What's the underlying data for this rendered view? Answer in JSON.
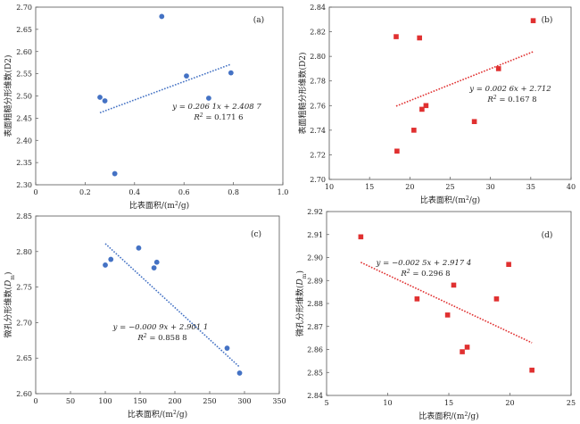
{
  "chart_data": [
    {
      "type": "scatter",
      "panel_label": "(a)",
      "xlabel": "比表面积/(m²/g)",
      "ylabel": "表面粗糙分形维数(D2)",
      "xlim": [
        0,
        1.0
      ],
      "ylim": [
        2.3,
        2.7
      ],
      "xticks": [
        "0",
        "0.2",
        "0.4",
        "0.6",
        "0.8",
        "1.0"
      ],
      "yticks": [
        "2.30",
        "2.35",
        "2.40",
        "2.45",
        "2.50",
        "2.55",
        "2.60",
        "2.65",
        "2.70"
      ],
      "marker": "circle",
      "color": "#4472c4",
      "points": [
        {
          "x": 0.26,
          "y": 2.497
        },
        {
          "x": 0.28,
          "y": 2.489
        },
        {
          "x": 0.32,
          "y": 2.325
        },
        {
          "x": 0.51,
          "y": 2.679
        },
        {
          "x": 0.61,
          "y": 2.545
        },
        {
          "x": 0.7,
          "y": 2.495
        },
        {
          "x": 0.79,
          "y": 2.552
        }
      ],
      "trendline": {
        "slope": 0.2061,
        "intercept": 2.4087,
        "x_start": 0.26,
        "x_end": 0.79
      },
      "equation": "y = 0.206 1x + 2.408 7",
      "r2": "R² = 0.171 6"
    },
    {
      "type": "scatter",
      "panel_label": "(b)",
      "xlabel": "比表面积/(m²/g)",
      "ylabel": "表面粗糙分形维数(D2)",
      "xlim": [
        10,
        40
      ],
      "ylim": [
        2.7,
        2.84
      ],
      "xticks": [
        "10",
        "15",
        "20",
        "25",
        "30",
        "35",
        "40"
      ],
      "yticks": [
        "2.70",
        "2.72",
        "2.74",
        "2.76",
        "2.78",
        "2.80",
        "2.82",
        "2.84"
      ],
      "marker": "square",
      "color": "#e03030",
      "points": [
        {
          "x": 18.3,
          "y": 2.816
        },
        {
          "x": 18.4,
          "y": 2.723
        },
        {
          "x": 20.5,
          "y": 2.74
        },
        {
          "x": 21.2,
          "y": 2.815
        },
        {
          "x": 21.5,
          "y": 2.757
        },
        {
          "x": 22.0,
          "y": 2.76
        },
        {
          "x": 28.0,
          "y": 2.747
        },
        {
          "x": 31.0,
          "y": 2.79
        },
        {
          "x": 35.3,
          "y": 2.829
        }
      ],
      "trendline": {
        "slope": 0.0026,
        "intercept": 2.712,
        "x_start": 18.3,
        "x_end": 35.3
      },
      "equation": "y = 0.002 6x + 2.712",
      "r2": "R² = 0.167 8"
    },
    {
      "type": "scatter",
      "panel_label": "(c)",
      "xlabel": "比表面积/(m²/g)",
      "ylabel": "微孔分形维数(Dm)",
      "xlim": [
        0,
        350
      ],
      "ylim": [
        2.6,
        2.85
      ],
      "xticks": [
        "0",
        "50",
        "100",
        "150",
        "200",
        "250",
        "300",
        "350"
      ],
      "yticks": [
        "2.60",
        "2.65",
        "2.70",
        "2.75",
        "2.80",
        "2.85"
      ],
      "marker": "circle",
      "color": "#4472c4",
      "points": [
        {
          "x": 100,
          "y": 2.781
        },
        {
          "x": 108,
          "y": 2.789
        },
        {
          "x": 148,
          "y": 2.805
        },
        {
          "x": 170,
          "y": 2.777
        },
        {
          "x": 174,
          "y": 2.785
        },
        {
          "x": 275,
          "y": 2.664
        },
        {
          "x": 293,
          "y": 2.629
        }
      ],
      "trendline": {
        "slope": -0.0009,
        "intercept": 2.9011,
        "x_start": 100,
        "x_end": 293
      },
      "equation": "y = −0.000 9x + 2.901 1",
      "r2": "R² = 0.858 8"
    },
    {
      "type": "scatter",
      "panel_label": "(d)",
      "xlabel": "比表面积/(m²/g)",
      "ylabel": "微孔分形维数(Dm)",
      "xlim": [
        5,
        25
      ],
      "ylim": [
        2.84,
        2.92
      ],
      "xticks": [
        "5",
        "10",
        "15",
        "20",
        "25"
      ],
      "yticks": [
        "2.84",
        "2.85",
        "2.86",
        "2.87",
        "2.88",
        "2.89",
        "2.90",
        "2.91",
        "2.92"
      ],
      "marker": "square",
      "color": "#e03030",
      "points": [
        {
          "x": 7.8,
          "y": 2.909
        },
        {
          "x": 12.4,
          "y": 2.882
        },
        {
          "x": 14.9,
          "y": 2.875
        },
        {
          "x": 15.4,
          "y": 2.888
        },
        {
          "x": 16.1,
          "y": 2.859
        },
        {
          "x": 16.5,
          "y": 2.861
        },
        {
          "x": 18.9,
          "y": 2.882
        },
        {
          "x": 19.9,
          "y": 2.897
        },
        {
          "x": 21.8,
          "y": 2.851
        }
      ],
      "trendline": {
        "slope": -0.0025,
        "intercept": 2.9174,
        "x_start": 7.8,
        "x_end": 21.8
      },
      "equation": "y = −0.002 5x + 2.917 4",
      "r2": "R² = 0.296 8"
    }
  ]
}
